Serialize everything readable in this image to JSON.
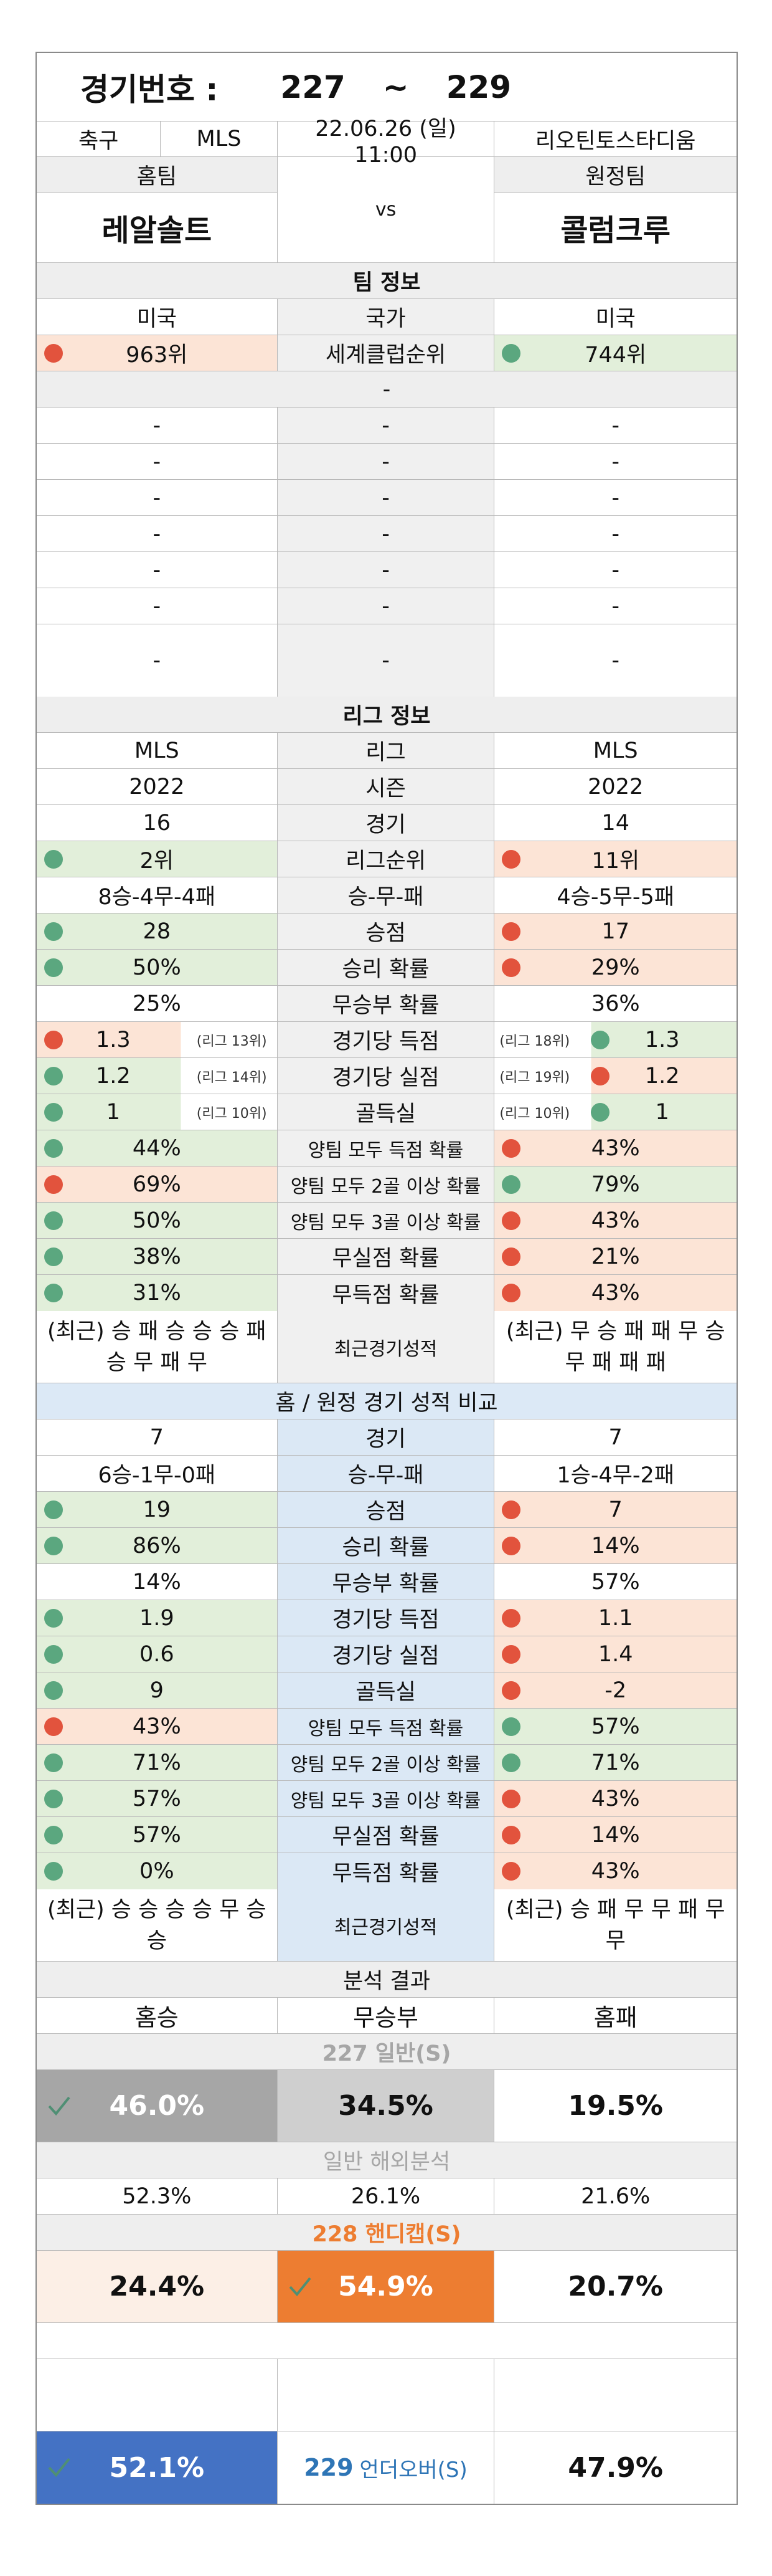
{
  "header": {
    "label": "경기번호 :",
    "start": "227",
    "tilde": "~",
    "end": "229"
  },
  "match": {
    "sport": "축구",
    "league": "MLS",
    "datetime": "22.06.26 (일) 11:00",
    "venue": "리오틴토스타디움"
  },
  "teams": {
    "home_label": "홈팀",
    "away_label": "원정팀",
    "home": "레알솔트",
    "vs": "vs",
    "away": "콜럼크루"
  },
  "team_info": {
    "title": "팀 정보",
    "country_home": "미국",
    "country_label": "국가",
    "country_away": "미국",
    "rank_home": "963위",
    "rank_label": "세계클럽순위",
    "rank_away": "744위",
    "dash": "-"
  },
  "league_info": {
    "title": "리그 정보",
    "rows": [
      {
        "home": "MLS",
        "label": "리그",
        "away": "MLS"
      },
      {
        "home": "2022",
        "label": "시즌",
        "away": "2022"
      },
      {
        "home": "16",
        "label": "경기",
        "away": "14"
      },
      {
        "home": "2위",
        "label": "리그순위",
        "away": "11위",
        "hd": "green",
        "ad": "red",
        "hb": "green",
        "ab": "pink"
      },
      {
        "home": "8승-4무-4패",
        "label": "승-무-패",
        "away": "4승-5무-5패"
      },
      {
        "home": "28",
        "label": "승점",
        "away": "17",
        "hd": "green",
        "ad": "red",
        "hb": "green",
        "ab": "pink"
      },
      {
        "home": "50%",
        "label": "승리 확률",
        "away": "29%",
        "hd": "green",
        "ad": "red",
        "hb": "green",
        "ab": "pink"
      },
      {
        "home": "25%",
        "label": "무승부 확률",
        "away": "36%"
      },
      {
        "home": "1.3",
        "label": "경기당 득점",
        "away": "1.3",
        "hd": "red",
        "ad": "green",
        "hb": "pink",
        "ab": "green",
        "hr": "(리그 13위)",
        "ar": "(리그 18위)"
      },
      {
        "home": "1.2",
        "label": "경기당 실점",
        "away": "1.2",
        "hd": "green",
        "ad": "red",
        "hb": "green",
        "ab": "pink",
        "hr": "(리그 14위)",
        "ar": "(리그 19위)"
      },
      {
        "home": "1",
        "label": "골득실",
        "away": "1",
        "hd": "green",
        "ad": "green",
        "hb": "green",
        "ab": "green",
        "hr": "(리그 10위)",
        "ar": "(리그 10위)"
      },
      {
        "home": "44%",
        "label": "양팀 모두 득점 확률",
        "away": "43%",
        "hd": "green",
        "ad": "red",
        "hb": "green",
        "ab": "pink"
      },
      {
        "home": "69%",
        "label": "양팀 모두 2골 이상 확률",
        "away": "79%",
        "hd": "red",
        "ad": "green",
        "hb": "pink",
        "ab": "green"
      },
      {
        "home": "50%",
        "label": "양팀 모두 3골 이상 확률",
        "away": "43%",
        "hd": "green",
        "ad": "red",
        "hb": "green",
        "ab": "pink"
      },
      {
        "home": "38%",
        "label": "무실점 확률",
        "away": "21%",
        "hd": "green",
        "ad": "red",
        "hb": "green",
        "ab": "pink"
      },
      {
        "home": "31%",
        "label": "무득점 확률",
        "away": "43%",
        "hd": "green",
        "ad": "red",
        "hb": "green",
        "ab": "pink"
      }
    ],
    "recent_home": "(최근) 승 패 승 승 승 패 승 무 패 무",
    "recent_label": "최근경기성적",
    "recent_away": "(최근) 무 승 패 패 무 승 무 패 패 패"
  },
  "home_away": {
    "title": "홈 / 원정 경기 성적 비교",
    "rows": [
      {
        "home": "7",
        "label": "경기",
        "away": "7"
      },
      {
        "home": "6승-1무-0패",
        "label": "승-무-패",
        "away": "1승-4무-2패"
      },
      {
        "home": "19",
        "label": "승점",
        "away": "7",
        "hd": "green",
        "ad": "red",
        "hb": "green",
        "ab": "pink"
      },
      {
        "home": "86%",
        "label": "승리 확률",
        "away": "14%",
        "hd": "green",
        "ad": "red",
        "hb": "green",
        "ab": "pink"
      },
      {
        "home": "14%",
        "label": "무승부 확률",
        "away": "57%"
      },
      {
        "home": "1.9",
        "label": "경기당 득점",
        "away": "1.1",
        "hd": "green",
        "ad": "red",
        "hb": "green",
        "ab": "pink"
      },
      {
        "home": "0.6",
        "label": "경기당 실점",
        "away": "1.4",
        "hd": "green",
        "ad": "red",
        "hb": "green",
        "ab": "pink"
      },
      {
        "home": "9",
        "label": "골득실",
        "away": "-2",
        "hd": "green",
        "ad": "red",
        "hb": "green",
        "ab": "pink"
      },
      {
        "home": "43%",
        "label": "양팀 모두 득점 확률",
        "away": "57%",
        "hd": "red",
        "ad": "green",
        "hb": "pink",
        "ab": "green"
      },
      {
        "home": "71%",
        "label": "양팀 모두 2골 이상 확률",
        "away": "71%",
        "hd": "green",
        "ad": "green",
        "hb": "green",
        "ab": "green"
      },
      {
        "home": "57%",
        "label": "양팀 모두 3골 이상 확률",
        "away": "43%",
        "hd": "green",
        "ad": "red",
        "hb": "green",
        "ab": "pink"
      },
      {
        "home": "57%",
        "label": "무실점 확률",
        "away": "14%",
        "hd": "green",
        "ad": "red",
        "hb": "green",
        "ab": "pink"
      },
      {
        "home": "0%",
        "label": "무득점 확률",
        "away": "43%",
        "hd": "green",
        "ad": "red",
        "hb": "green",
        "ab": "pink"
      }
    ],
    "recent_home": "(최근) 승 승 승 승 무 승 승",
    "recent_label": "최근경기성적",
    "recent_away": "(최근) 승 패 무 무 패 무 무"
  },
  "analysis": {
    "title": "분석 결과",
    "col_home": "홈승",
    "col_draw": "무승부",
    "col_away": "홈패",
    "general_title": "227 일반(S)",
    "general_home": "46.0%",
    "general_draw": "34.5%",
    "general_away": "19.5%",
    "overseas_title": "일반 해외분석",
    "overseas_home": "52.3%",
    "overseas_draw": "26.1%",
    "overseas_away": "21.6%",
    "handicap_title": "228 핸디캡(S)",
    "handicap_home": "24.4%",
    "handicap_draw": "54.9%",
    "handicap_away": "20.7%",
    "under_home": "52.1%",
    "under_label_num": "229",
    "under_label": "언더오버(S)",
    "under_away": "47.9%"
  },
  "colors": {
    "orange": "#ed7d31",
    "blue": "#4472c4",
    "gray": "#a6a6a6",
    "lightgray": "#cfcfcf",
    "red_dot": "#e2533d",
    "green_dot": "#5ba77f"
  }
}
